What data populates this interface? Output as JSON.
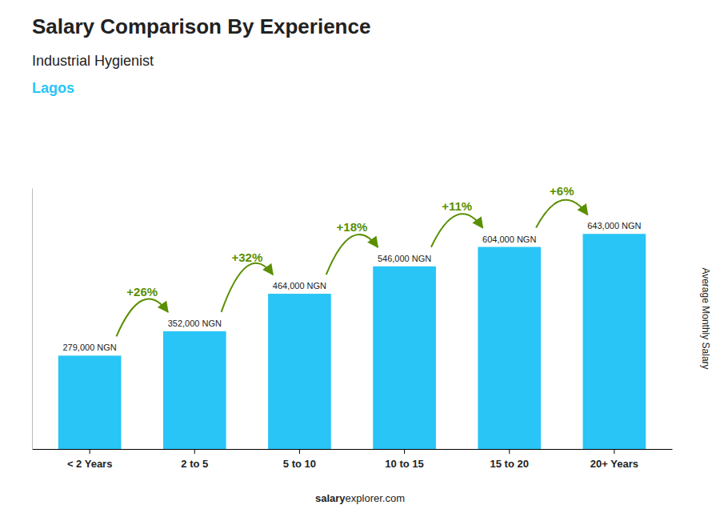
{
  "chart_data": {
    "type": "bar",
    "title": "Salary Comparison By Experience",
    "subtitle": "Industrial Hygienist",
    "city": "Lagos",
    "y_label": "Average Monthly Salary",
    "footer": [
      "salary",
      "explorer.com"
    ],
    "categories": [
      "< 2 Years",
      "2 to 5",
      "5 to 10",
      "10 to 15",
      "15 to 20",
      "20+ Years"
    ],
    "values": [
      279000,
      352000,
      464000,
      546000,
      604000,
      643000
    ],
    "value_labels": [
      "279,000 NGN",
      "352,000 NGN",
      "464,000 NGN",
      "546,000 NGN",
      "604,000 NGN",
      "643,000 NGN"
    ],
    "annotations": [
      null,
      "+26%",
      "+32%",
      "+18%",
      "+11%",
      "+6%"
    ],
    "color": "#29C5F6",
    "ylim": [
      0,
      780000
    ],
    "tick_labels": "x",
    "grid": false
  }
}
